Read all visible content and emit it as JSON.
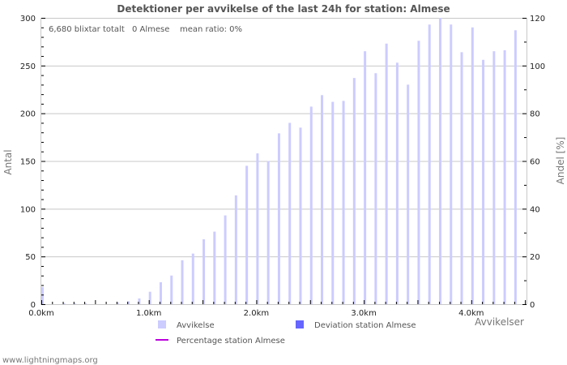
{
  "title": "Detektioner per avvikelse of the last 24h for station: Almese",
  "stats": {
    "total": "6,680 blixtar totalt",
    "station": "0 Almese",
    "mean_ratio": "mean ratio: 0%"
  },
  "axes": {
    "left_label": "Antal",
    "right_label": "Andel [%]",
    "x_label": "Avvikelser"
  },
  "legend": {
    "items": [
      {
        "label": "Avvikelse",
        "icon": "square-swatch",
        "color": "#ccccff"
      },
      {
        "label": "Deviation station Almese",
        "icon": "square-swatch",
        "color": "#6666ff"
      },
      {
        "label": "Percentage station Almese",
        "icon": "line-swatch",
        "color": "#bb00dd"
      }
    ]
  },
  "footer": "www.lightningmaps.org",
  "colors": {
    "bar": "#ccccff",
    "station_bar": "#6666ff",
    "percentage_line": "#bb00dd",
    "grid": "#c8c8c8",
    "tick": "#000000"
  },
  "chart_data": {
    "type": "bar",
    "title": "Detektioner per avvikelse of the last 24h for station: Almese",
    "xlabel": "Avvikelser",
    "ylabel": "Antal",
    "y2label": "Andel [%]",
    "ylim": [
      0,
      300
    ],
    "y2lim": [
      0,
      120
    ],
    "grid": true,
    "legend_position": "bottom",
    "y_ticks": [
      0,
      50,
      100,
      150,
      200,
      250,
      300
    ],
    "y2_ticks": [
      0,
      20,
      40,
      60,
      80,
      100,
      120
    ],
    "x_tick_labels": [
      "0.0km",
      "1.0km",
      "2.0km",
      "3.0km",
      "4.0km"
    ],
    "x_tick_values_km": [
      0,
      1,
      2,
      3,
      4
    ],
    "categories": [
      "0.0km",
      "0.1km",
      "0.2km",
      "0.3km",
      "0.4km",
      "0.5km",
      "0.6km",
      "0.7km",
      "0.8km",
      "0.9km",
      "1.0km",
      "1.1km",
      "1.2km",
      "1.3km",
      "1.4km",
      "1.5km",
      "1.6km",
      "1.7km",
      "1.8km",
      "1.9km",
      "2.0km",
      "2.1km",
      "2.2km",
      "2.3km",
      "2.4km",
      "2.5km",
      "2.6km",
      "2.7km",
      "2.8km",
      "2.9km",
      "3.0km",
      "3.1km",
      "3.2km",
      "3.3km",
      "3.4km",
      "3.5km",
      "3.6km",
      "3.7km",
      "3.8km",
      "3.9km",
      "4.0km",
      "4.1km",
      "4.2km",
      "4.3km",
      "4.4km"
    ],
    "series": [
      {
        "name": "Avvikelse",
        "axis": "left",
        "values": [
          18,
          0,
          1,
          1,
          1,
          0,
          0,
          2,
          3,
          6,
          13,
          23,
          30,
          46,
          53,
          68,
          76,
          93,
          114,
          145,
          158,
          150,
          179,
          190,
          185,
          207,
          219,
          212,
          213,
          237,
          265,
          242,
          273,
          253,
          230,
          276,
          293,
          300,
          293,
          264,
          290,
          256,
          265,
          266,
          287
        ]
      },
      {
        "name": "Deviation station Almese",
        "axis": "left",
        "values": [
          0,
          0,
          0,
          0,
          0,
          0,
          0,
          0,
          0,
          0,
          0,
          0,
          0,
          0,
          0,
          0,
          0,
          0,
          0,
          0,
          0,
          0,
          0,
          0,
          0,
          0,
          0,
          0,
          0,
          0,
          0,
          0,
          0,
          0,
          0,
          0,
          0,
          0,
          0,
          0,
          0,
          0,
          0,
          0,
          0
        ]
      },
      {
        "name": "Percentage station Almese",
        "axis": "right",
        "values": [
          0,
          0,
          0,
          0,
          0,
          0,
          0,
          0,
          0,
          0,
          0,
          0,
          0,
          0,
          0,
          0,
          0,
          0,
          0,
          0,
          0,
          0,
          0,
          0,
          0,
          0,
          0,
          0,
          0,
          0,
          0,
          0,
          0,
          0,
          0,
          0,
          0,
          0,
          0,
          0,
          0,
          0,
          0,
          0,
          0
        ]
      }
    ]
  }
}
